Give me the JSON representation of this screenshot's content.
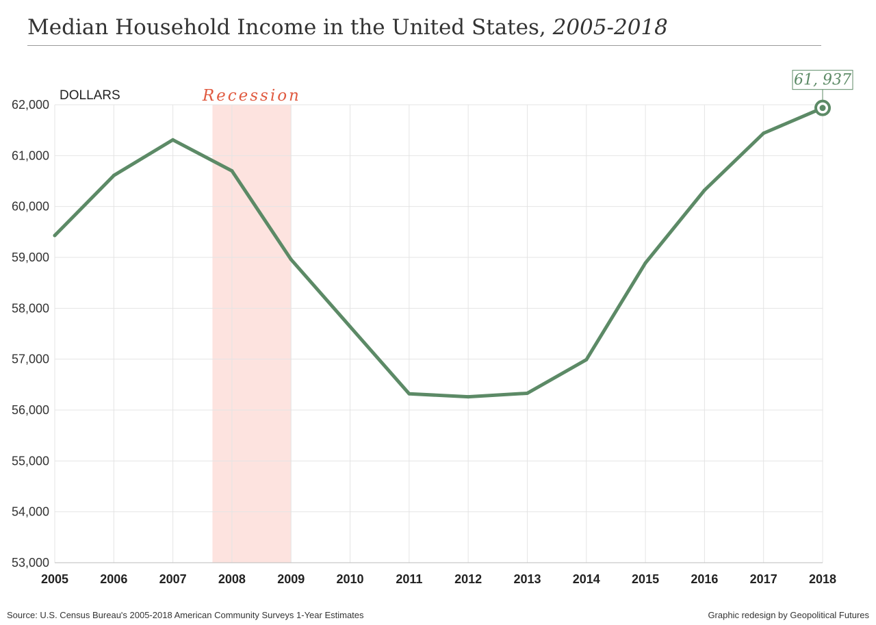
{
  "header": {
    "title_main": "Median Household Income in the United States, ",
    "title_years": "2005-2018"
  },
  "footer": {
    "source": "Source: U.S. Census Bureau's 2005-2018 American Community Surveys 1-Year Estimates",
    "credit": "Graphic redesign by Geopolitical Futures"
  },
  "chart_data": {
    "type": "line",
    "title": "Median Household Income in the United States, 2005-2018",
    "ylabel": "DOLLARS",
    "xlabel": "",
    "x": [
      2005,
      2006,
      2007,
      2008,
      2009,
      2010,
      2011,
      2012,
      2013,
      2014,
      2015,
      2016,
      2017,
      2018
    ],
    "x_tick_labels": [
      "2005",
      "2006",
      "2007",
      "2008",
      "2009",
      "2010",
      "2011",
      "2012",
      "2013",
      "2014",
      "2015",
      "2016",
      "2017",
      "2018"
    ],
    "y_tick_labels": [
      "53,000",
      "54,000",
      "55,000",
      "56,000",
      "57,000",
      "58,000",
      "59,000",
      "60,000",
      "61,000",
      "62,000"
    ],
    "ylim": [
      53000,
      62000
    ],
    "series": [
      {
        "values": [
          59430,
          60610,
          61310,
          60700,
          58960,
          57640,
          56320,
          56260,
          56330,
          56990,
          58890,
          60320,
          61440,
          61937
        ],
        "color": "#5c8a66"
      }
    ],
    "annotations": {
      "recession": {
        "label": "Recession",
        "x_start": 2007.67,
        "x_end": 2009.0,
        "color": "#fde3df"
      },
      "last_value_label": "61, 937"
    },
    "grid": true
  }
}
